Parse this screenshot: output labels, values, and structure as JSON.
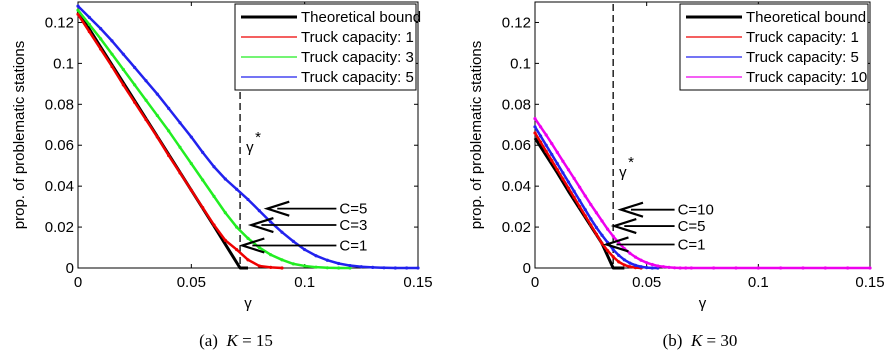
{
  "chart_data": [
    {
      "type": "line",
      "caption_prefix": "(a)",
      "caption_var": "K",
      "caption_value": "= 15",
      "xlabel": "γ",
      "ylabel": "prop. of problematic stations",
      "xlim": [
        0,
        0.15
      ],
      "ylim": [
        0,
        0.13
      ],
      "xticks": [
        "0",
        "0.05",
        "0.1",
        "0.15"
      ],
      "xtick_values": [
        0,
        0.05,
        0.1,
        0.15
      ],
      "yticks": [
        "0",
        "0.02",
        "0.04",
        "0.06",
        "0.08",
        "0.1",
        "0.12"
      ],
      "ytick_values": [
        0,
        0.02,
        0.04,
        0.06,
        0.08,
        0.1,
        0.12
      ],
      "grid": false,
      "legend_position": "top-right",
      "gamma_star": {
        "x": 0.0715,
        "label": "γ",
        "sup": "*"
      },
      "series": [
        {
          "name": "Theoretical bound",
          "color": "#000000",
          "width": 3,
          "markers": false,
          "x": [
            0,
            0.01,
            0.02,
            0.03,
            0.04,
            0.05,
            0.06,
            0.0715,
            0.075
          ],
          "y": [
            0.1255,
            0.108,
            0.0905,
            0.073,
            0.0555,
            0.038,
            0.0205,
            0.0,
            0.0
          ]
        },
        {
          "name": "Truck capacity: 1",
          "color": "#ee0000",
          "width": 2.5,
          "markers": true,
          "x": [
            0,
            0.005,
            0.01,
            0.015,
            0.02,
            0.025,
            0.03,
            0.035,
            0.04,
            0.045,
            0.05,
            0.055,
            0.06,
            0.065,
            0.07,
            0.075,
            0.08,
            0.085,
            0.09
          ],
          "y": [
            0.124,
            0.1155,
            0.107,
            0.0985,
            0.0895,
            0.081,
            0.0725,
            0.064,
            0.055,
            0.0465,
            0.038,
            0.0295,
            0.021,
            0.0135,
            0.009,
            0.004,
            0.001,
            0.0003,
            0.0
          ]
        },
        {
          "name": "Truck capacity: 3",
          "color": "#22ee22",
          "width": 2.5,
          "markers": true,
          "x": [
            0,
            0.005,
            0.01,
            0.015,
            0.02,
            0.025,
            0.03,
            0.035,
            0.04,
            0.045,
            0.05,
            0.055,
            0.06,
            0.065,
            0.07,
            0.075,
            0.08,
            0.085,
            0.09,
            0.095,
            0.1,
            0.105,
            0.11,
            0.115,
            0.12
          ],
          "y": [
            0.126,
            0.119,
            0.112,
            0.1045,
            0.097,
            0.0895,
            0.082,
            0.0745,
            0.067,
            0.059,
            0.051,
            0.043,
            0.035,
            0.027,
            0.02,
            0.0145,
            0.01,
            0.0065,
            0.004,
            0.002,
            0.001,
            0.0004,
            0.0001,
            0.0,
            0.0
          ]
        },
        {
          "name": "Truck capacity: 5",
          "color": "#2222ee",
          "width": 2.5,
          "markers": true,
          "x": [
            0,
            0.005,
            0.01,
            0.015,
            0.02,
            0.025,
            0.03,
            0.035,
            0.04,
            0.045,
            0.05,
            0.055,
            0.06,
            0.065,
            0.07,
            0.075,
            0.08,
            0.085,
            0.09,
            0.095,
            0.1,
            0.105,
            0.11,
            0.115,
            0.12,
            0.125,
            0.13,
            0.135,
            0.14,
            0.145,
            0.15
          ],
          "y": [
            0.128,
            0.1225,
            0.117,
            0.111,
            0.1045,
            0.098,
            0.0915,
            0.085,
            0.078,
            0.071,
            0.064,
            0.0565,
            0.0495,
            0.0435,
            0.0385,
            0.0335,
            0.028,
            0.0225,
            0.0175,
            0.013,
            0.009,
            0.006,
            0.0038,
            0.0022,
            0.0012,
            0.0006,
            0.0003,
            0.0001,
            0.0,
            0.0,
            0.0
          ]
        }
      ],
      "annotations": [
        {
          "label": "C=5",
          "x_tip": 0.0835,
          "y": 0.029,
          "x_tail": 0.114
        },
        {
          "label": "C=3",
          "x_tip": 0.0765,
          "y": 0.021,
          "x_tail": 0.114
        },
        {
          "label": "C=1",
          "x_tip": 0.0725,
          "y": 0.011,
          "x_tail": 0.114
        }
      ]
    },
    {
      "type": "line",
      "caption_prefix": "(b)",
      "caption_var": "K",
      "caption_value": "= 30",
      "xlabel": "γ",
      "ylabel": "prop. of problematic stations",
      "xlim": [
        0,
        0.15
      ],
      "ylim": [
        0,
        0.13
      ],
      "xticks": [
        "0",
        "0.05",
        "0.1",
        "0.15"
      ],
      "xtick_values": [
        0,
        0.05,
        0.1,
        0.15
      ],
      "yticks": [
        "0",
        "0.02",
        "0.04",
        "0.06",
        "0.08",
        "0.1",
        "0.12"
      ],
      "ytick_values": [
        0,
        0.02,
        0.04,
        0.06,
        0.08,
        0.1,
        0.12
      ],
      "grid": false,
      "legend_position": "top-right",
      "gamma_star": {
        "x": 0.035,
        "label": "γ",
        "sup": "*"
      },
      "series": [
        {
          "name": "Theoretical bound",
          "color": "#000000",
          "width": 3,
          "markers": false,
          "x": [
            0,
            0.005,
            0.01,
            0.015,
            0.02,
            0.025,
            0.03,
            0.035,
            0.04
          ],
          "y": [
            0.0635,
            0.055,
            0.0465,
            0.0375,
            0.029,
            0.0205,
            0.012,
            0.0,
            0.0
          ]
        },
        {
          "name": "Truck capacity: 1",
          "color": "#ee0000",
          "width": 2.5,
          "markers": true,
          "x": [
            0,
            0.0025,
            0.005,
            0.0075,
            0.01,
            0.0125,
            0.015,
            0.0175,
            0.02,
            0.0225,
            0.025,
            0.0275,
            0.03,
            0.0325,
            0.035,
            0.0375,
            0.04,
            0.0425,
            0.045,
            0.0475
          ],
          "y": [
            0.066,
            0.0615,
            0.057,
            0.0525,
            0.048,
            0.0435,
            0.039,
            0.0345,
            0.03,
            0.0255,
            0.021,
            0.0165,
            0.012,
            0.0085,
            0.0055,
            0.003,
            0.0015,
            0.0006,
            0.0002,
            0.0
          ]
        },
        {
          "name": "Truck capacity: 5",
          "color": "#2222ee",
          "width": 2.5,
          "markers": true,
          "x": [
            0,
            0.0025,
            0.005,
            0.0075,
            0.01,
            0.0125,
            0.015,
            0.0175,
            0.02,
            0.0225,
            0.025,
            0.0275,
            0.03,
            0.0325,
            0.035,
            0.0375,
            0.04,
            0.0425,
            0.045,
            0.0475,
            0.05,
            0.0525,
            0.055
          ],
          "y": [
            0.069,
            0.0645,
            0.06,
            0.0555,
            0.051,
            0.0465,
            0.042,
            0.0375,
            0.033,
            0.0285,
            0.024,
            0.0198,
            0.016,
            0.0125,
            0.009,
            0.0062,
            0.004,
            0.0024,
            0.0013,
            0.0006,
            0.0002,
            0.0,
            0.0
          ]
        },
        {
          "name": "Truck capacity: 10",
          "color": "#ee00ee",
          "width": 2.5,
          "markers": true,
          "x": [
            0,
            0.0025,
            0.005,
            0.0075,
            0.01,
            0.0125,
            0.015,
            0.0175,
            0.02,
            0.0225,
            0.025,
            0.0275,
            0.03,
            0.0325,
            0.035,
            0.0375,
            0.04,
            0.0425,
            0.045,
            0.0475,
            0.05,
            0.0525,
            0.055,
            0.0575,
            0.06,
            0.0625,
            0.065,
            0.0675,
            0.07,
            0.08,
            0.09,
            0.1,
            0.11,
            0.12,
            0.13,
            0.14,
            0.15
          ],
          "y": [
            0.073,
            0.069,
            0.065,
            0.0608,
            0.0565,
            0.0522,
            0.048,
            0.0438,
            0.0395,
            0.0352,
            0.031,
            0.027,
            0.023,
            0.019,
            0.0155,
            0.0123,
            0.0095,
            0.0072,
            0.0053,
            0.0038,
            0.0026,
            0.0017,
            0.001,
            0.0006,
            0.0003,
            0.0001,
            0.0,
            0.0,
            0.0,
            0.0,
            0.0,
            0.0,
            0.0,
            0.0,
            0.0,
            0.0,
            0.0
          ]
        }
      ],
      "annotations": [
        {
          "label": "C=10",
          "x_tip": 0.0385,
          "y": 0.0285,
          "x_tail": 0.0625
        },
        {
          "label": "C=5",
          "x_tip": 0.0355,
          "y": 0.0205,
          "x_tail": 0.0625
        },
        {
          "label": "C=1",
          "x_tip": 0.032,
          "y": 0.0115,
          "x_tail": 0.0625
        }
      ]
    }
  ]
}
